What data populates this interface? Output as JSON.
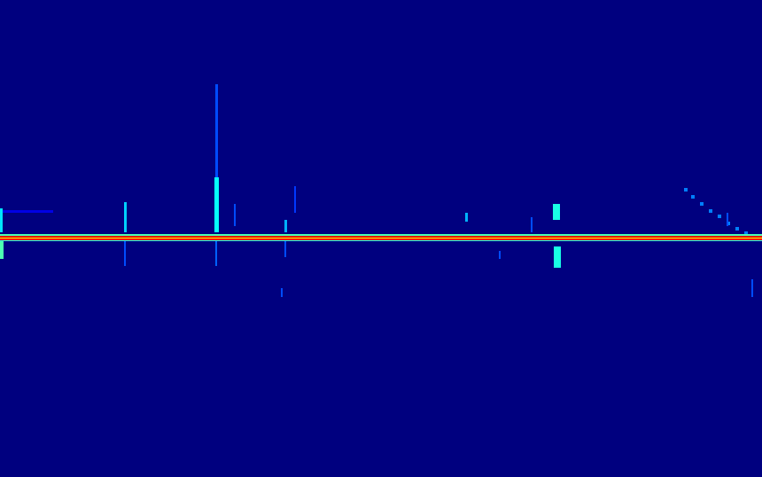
{
  "chart_data": {
    "type": "heatmap",
    "tick_labels": false,
    "xlim": [
      0,
      860
    ],
    "ylim": [
      0,
      538
    ],
    "zlim": [
      0,
      1
    ],
    "cells": [
      [
        0,
        860,
        0,
        538,
        0
      ],
      [
        0,
        60,
        237,
        240,
        0.1
      ],
      [
        0,
        860,
        264,
        266,
        0.45
      ],
      [
        0,
        860,
        266,
        268,
        0.9
      ],
      [
        0,
        860,
        268,
        269,
        0.62
      ],
      [
        0,
        860,
        269,
        271,
        0.88
      ],
      [
        0,
        860,
        271,
        272,
        0.4
      ],
      [
        0,
        3,
        235,
        262,
        0.35
      ],
      [
        0,
        4,
        272,
        292,
        0.45
      ],
      [
        243,
        246,
        95,
        200,
        0.2
      ],
      [
        242,
        247,
        200,
        262,
        0.38
      ],
      [
        243,
        245,
        272,
        300,
        0.22
      ],
      [
        140,
        143,
        228,
        262,
        0.33
      ],
      [
        140,
        142,
        272,
        300,
        0.2
      ],
      [
        264,
        266,
        230,
        255,
        0.2
      ],
      [
        321,
        324,
        248,
        262,
        0.3
      ],
      [
        321,
        323,
        272,
        290,
        0.2
      ],
      [
        332,
        334,
        210,
        240,
        0.18
      ],
      [
        317,
        319,
        325,
        335,
        0.2
      ],
      [
        525,
        528,
        240,
        250,
        0.3
      ],
      [
        599,
        601,
        245,
        262,
        0.2
      ],
      [
        624,
        632,
        230,
        248,
        0.4
      ],
      [
        625,
        633,
        278,
        302,
        0.4
      ],
      [
        563,
        565,
        283,
        292,
        0.2
      ],
      [
        772,
        776,
        212,
        216,
        0.25
      ],
      [
        780,
        784,
        220,
        224,
        0.25
      ],
      [
        790,
        794,
        228,
        232,
        0.25
      ],
      [
        800,
        804,
        236,
        240,
        0.25
      ],
      [
        810,
        814,
        242,
        246,
        0.25
      ],
      [
        820,
        824,
        250,
        254,
        0.25
      ],
      [
        830,
        834,
        256,
        260,
        0.25
      ],
      [
        840,
        844,
        261,
        264,
        0.25
      ],
      [
        820,
        822,
        240,
        255,
        0.2
      ],
      [
        848,
        850,
        315,
        335,
        0.2
      ]
    ]
  }
}
